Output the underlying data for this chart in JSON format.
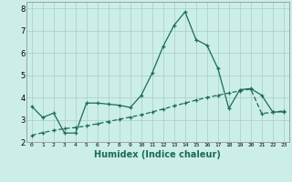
{
  "title": "",
  "xlabel": "Humidex (Indice chaleur)",
  "ylabel": "",
  "background_color": "#cceee8",
  "grid_color": "#aacccc",
  "line_color": "#1a6b5a",
  "xlim": [
    -0.5,
    23.5
  ],
  "ylim": [
    2.0,
    8.3
  ],
  "yticks": [
    2,
    3,
    4,
    5,
    6,
    7,
    8
  ],
  "xtick_labels": [
    "0",
    "1",
    "2",
    "3",
    "4",
    "5",
    "6",
    "7",
    "8",
    "9",
    "10",
    "11",
    "12",
    "13",
    "14",
    "15",
    "16",
    "17",
    "18",
    "19",
    "20",
    "21",
    "22",
    "23"
  ],
  "series1_x": [
    0,
    1,
    2,
    3,
    4,
    5,
    6,
    7,
    8,
    9,
    10,
    11,
    12,
    13,
    14,
    15,
    16,
    17,
    18,
    19,
    20,
    21,
    22,
    23
  ],
  "series1_y": [
    3.6,
    3.1,
    3.3,
    2.4,
    2.4,
    3.75,
    3.75,
    3.7,
    3.65,
    3.55,
    4.1,
    5.1,
    6.3,
    7.25,
    7.85,
    6.6,
    6.35,
    5.3,
    3.5,
    4.35,
    4.4,
    4.1,
    3.35,
    3.35
  ],
  "series2_x": [
    0,
    1,
    2,
    3,
    4,
    5,
    6,
    7,
    8,
    9,
    10,
    11,
    12,
    13,
    14,
    15,
    16,
    17,
    18,
    19,
    20,
    21,
    22,
    23
  ],
  "series2_y": [
    2.3,
    2.42,
    2.52,
    2.6,
    2.65,
    2.72,
    2.82,
    2.92,
    3.02,
    3.12,
    3.22,
    3.35,
    3.48,
    3.62,
    3.75,
    3.88,
    4.0,
    4.1,
    4.2,
    4.3,
    4.38,
    3.28,
    3.33,
    3.4
  ]
}
